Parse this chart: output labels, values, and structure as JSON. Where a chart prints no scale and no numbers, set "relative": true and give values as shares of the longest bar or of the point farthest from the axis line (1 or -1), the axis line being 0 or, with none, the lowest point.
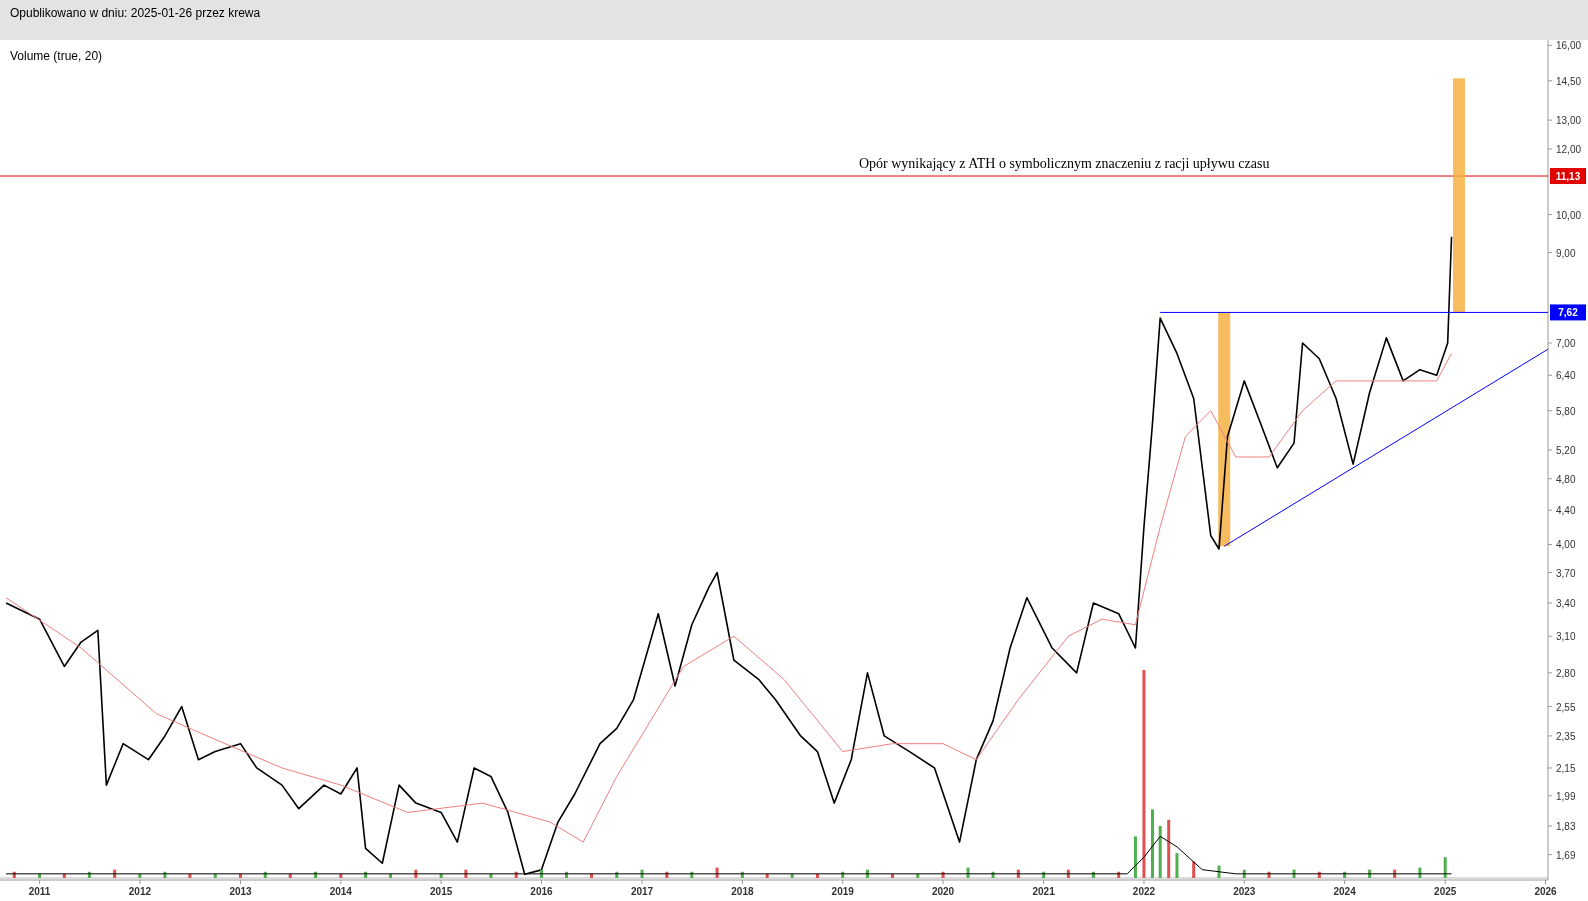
{
  "chart_data": [
    {
      "type": "line",
      "title": "Opublikowano w dniu: 2025-01-26 przez krewa",
      "log": true,
      "xlim": [
        "2010-08-10",
        "2026-01-10"
      ],
      "ylim": [
        1.575,
        16.15
      ],
      "xticks": [
        {
          "value": "2011",
          "label": "2011"
        },
        {
          "value": "2012",
          "label": "2012"
        },
        {
          "value": "2013",
          "label": "2013"
        },
        {
          "value": "2014",
          "label": "2014"
        },
        {
          "value": "2015",
          "label": "2015"
        },
        {
          "value": "2016",
          "label": "2016"
        },
        {
          "value": "2017",
          "label": "2017"
        },
        {
          "value": "2018",
          "label": "2018"
        },
        {
          "value": "2019",
          "label": "2019"
        },
        {
          "value": "2020",
          "label": "2020"
        },
        {
          "value": "2021",
          "label": "2021"
        },
        {
          "value": "2022",
          "label": "2022"
        },
        {
          "value": "2023",
          "label": "2023"
        },
        {
          "value": "2024",
          "label": "2024"
        },
        {
          "value": "2025",
          "label": "2025"
        },
        {
          "value": "2026",
          "label": "2026"
        }
      ],
      "yticks": [
        {
          "value": 1.69,
          "label": "1,69"
        },
        {
          "value": 1.83,
          "label": "1,83"
        },
        {
          "value": 1.99,
          "label": "1,99"
        },
        {
          "value": 2.15,
          "label": "2,15"
        },
        {
          "value": 2.35,
          "label": "2,35"
        },
        {
          "value": 2.55,
          "label": "2,55"
        },
        {
          "value": 2.8,
          "label": "2,80"
        },
        {
          "value": 3.1,
          "label": "3,10"
        },
        {
          "value": 3.4,
          "label": "3,40"
        },
        {
          "value": 3.7,
          "label": "3,70"
        },
        {
          "value": 4,
          "label": "4,00"
        },
        {
          "value": 4.4,
          "label": "4,40"
        },
        {
          "value": 4.8,
          "label": "4,80"
        },
        {
          "value": 5.2,
          "label": "5,20"
        },
        {
          "value": 5.8,
          "label": "5,80"
        },
        {
          "value": 6.4,
          "label": "6,40"
        },
        {
          "value": 7,
          "label": "7,00"
        },
        {
          "value": 9,
          "label": "9,00"
        },
        {
          "value": 10,
          "label": "10,00"
        },
        {
          "value": 12,
          "label": "12,00"
        },
        {
          "value": 13,
          "label": "13,00"
        },
        {
          "value": 14.5,
          "label": "14,50"
        },
        {
          "value": 16,
          "label": "16,00"
        }
      ],
      "ref_lines": [
        {
          "axis": "y",
          "value": 11.13,
          "label": "11,13",
          "color": "#e00000"
        }
      ],
      "annotations": [
        {
          "text": "Opór wynikający z ATH o symbolicznym znaczeniu z racji upływu czasu",
          "x": "2019-03",
          "y": 11.13
        }
      ],
      "series": [
        {
          "type": "line",
          "color": "#000000",
          "x": [
            "2010-09",
            "2011-01",
            "2011-04",
            "2011-06",
            "2011-08",
            "2011-09",
            "2011-11",
            "2012-02",
            "2012-04",
            "2012-06",
            "2012-08",
            "2012-10",
            "2013-01",
            "2013-03",
            "2013-06",
            "2013-08",
            "2013-11",
            "2014-01",
            "2014-03",
            "2014-04",
            "2014-06",
            "2014-08",
            "2014-10",
            "2015-01",
            "2015-03",
            "2015-05",
            "2015-07",
            "2015-09",
            "2015-11",
            "2016-01",
            "2016-03",
            "2016-05",
            "2016-08",
            "2016-10",
            "2016-12",
            "2017-03",
            "2017-05",
            "2017-07",
            "2017-09",
            "2017-10",
            "2017-12",
            "2018-03",
            "2018-05",
            "2018-08",
            "2018-10",
            "2018-12",
            "2019-02",
            "2019-04",
            "2019-06",
            "2019-09",
            "2019-12",
            "2020-03",
            "2020-05",
            "2020-07",
            "2020-09",
            "2020-11",
            "2021-02",
            "2021-05",
            "2021-07",
            "2021-10",
            "2021-12",
            "2022-01",
            "2022-02",
            "2022-03",
            "2022-05",
            "2022-07",
            "2022-09",
            "2022-10",
            "2022-11",
            "2023-01",
            "2023-03",
            "2023-05",
            "2023-07",
            "2023-08",
            "2023-10",
            "2023-12",
            "2024-02",
            "2024-04",
            "2024-06",
            "2024-08",
            "2024-10",
            "2024-12",
            "2025-01-10",
            "2025-01-24"
          ],
          "values": [
            3.4,
            3.25,
            2.85,
            3.05,
            3.15,
            2.05,
            2.3,
            2.2,
            2.35,
            2.55,
            2.2,
            2.25,
            2.3,
            2.15,
            2.05,
            1.92,
            2.05,
            2,
            2.15,
            1.72,
            1.65,
            2.05,
            1.95,
            1.9,
            1.75,
            2.15,
            2.1,
            1.9,
            1.6,
            1.62,
            1.85,
            2,
            2.3,
            2.4,
            2.6,
            3.3,
            2.7,
            3.2,
            3.55,
            3.7,
            2.9,
            2.75,
            2.6,
            2.35,
            2.25,
            1.95,
            2.2,
            2.8,
            2.35,
            2.25,
            2.15,
            1.75,
            2.2,
            2.45,
            3,
            3.45,
            3,
            2.8,
            3.4,
            3.3,
            3,
            4.2,
            5.6,
            7.5,
            6.8,
            6,
            4.1,
            3.95,
            5.4,
            6.3,
            5.6,
            4.95,
            5.3,
            7,
            6.7,
            6,
            5,
            6.1,
            7.1,
            6.3,
            6.5,
            6.4,
            7,
            9.4
          ]
        },
        {
          "type": "line",
          "color": "#f08080",
          "x": [
            "2010-09",
            "2011-06",
            "2012-03",
            "2012-09",
            "2013-06",
            "2014-01",
            "2014-09",
            "2015-06",
            "2016-02",
            "2016-06",
            "2016-10",
            "2017-06",
            "2017-12",
            "2018-06",
            "2019-01",
            "2019-07",
            "2020-01",
            "2020-05",
            "2020-10",
            "2021-04",
            "2021-08",
            "2021-12",
            "2022-03",
            "2022-06",
            "2022-09",
            "2022-12",
            "2023-04",
            "2023-08",
            "2023-12",
            "2024-06",
            "2024-12",
            "2025-01-24"
          ],
          "values": [
            3.45,
            3,
            2.5,
            2.35,
            2.15,
            2.05,
            1.9,
            1.95,
            1.85,
            1.75,
            2.1,
            2.85,
            3.1,
            2.75,
            2.25,
            2.3,
            2.3,
            2.2,
            2.6,
            3.1,
            3.25,
            3.2,
            4.2,
            5.4,
            5.8,
            5.1,
            5.1,
            5.8,
            6.3,
            6.3,
            6.3,
            6.8
          ]
        },
        {
          "type": "line",
          "color": "#0000ff",
          "x": [
            "2022-10-20",
            "2026-01-10"
          ],
          "values": [
            3.98,
            6.88
          ]
        },
        {
          "type": "line",
          "color": "#0000ff",
          "x": [
            "2022-03-01",
            "2026-01-10"
          ],
          "values": [
            7.62,
            7.62
          ],
          "value_labels": [
            null,
            "7,62"
          ]
        },
        {
          "type": "bar",
          "color": "#f5b041",
          "x": [
            "2022-10-20",
            "2025-02-20"
          ],
          "base": [
            3.98,
            7.62
          ],
          "values": [
            3.64,
            6.98
          ]
        }
      ]
    },
    {
      "type": "bar",
      "title": "Volume (true, 20)",
      "relative": true,
      "xlim": [
        "2010-08-10",
        "2026-01-10"
      ],
      "series": [
        {
          "type": "bar",
          "x": [
            "2010-10",
            "2011-01",
            "2011-04",
            "2011-07",
            "2011-10",
            "2012-01",
            "2012-04",
            "2012-07",
            "2012-10",
            "2013-01",
            "2013-04",
            "2013-07",
            "2013-10",
            "2014-01",
            "2014-04",
            "2014-07",
            "2014-10",
            "2015-01",
            "2015-04",
            "2015-07",
            "2015-10",
            "2016-01",
            "2016-04",
            "2016-07",
            "2016-10",
            "2017-01",
            "2017-04",
            "2017-07",
            "2017-10",
            "2018-01",
            "2018-04",
            "2018-07",
            "2018-10",
            "2019-01",
            "2019-04",
            "2019-07",
            "2019-10",
            "2020-01",
            "2020-04",
            "2020-07",
            "2020-10",
            "2021-01",
            "2021-04",
            "2021-07",
            "2021-10",
            "2021-12",
            "2022-01",
            "2022-02",
            "2022-03",
            "2022-04",
            "2022-05",
            "2022-07",
            "2022-10",
            "2023-01",
            "2023-04",
            "2023-07",
            "2023-10",
            "2024-01",
            "2024-04",
            "2024-07",
            "2024-10",
            "2025-01"
          ],
          "values": [
            0.03,
            0.02,
            0.02,
            0.03,
            0.04,
            0.02,
            0.03,
            0.02,
            0.02,
            0.02,
            0.03,
            0.02,
            0.03,
            0.02,
            0.03,
            0.02,
            0.04,
            0.02,
            0.04,
            0.02,
            0.03,
            0.04,
            0.03,
            0.02,
            0.03,
            0.04,
            0.03,
            0.03,
            0.05,
            0.03,
            0.02,
            0.02,
            0.02,
            0.03,
            0.04,
            0.02,
            0.02,
            0.03,
            0.05,
            0.03,
            0.04,
            0.03,
            0.04,
            0.03,
            0.03,
            0.2,
            1,
            0.33,
            0.25,
            0.28,
            0.12,
            0.08,
            0.06,
            0.04,
            0.03,
            0.04,
            0.03,
            0.03,
            0.04,
            0.04,
            0.05,
            0.1
          ],
          "colors": [
            "#e05050",
            "#50b050",
            "#e05050",
            "#50b050",
            "#e05050",
            "#50b050",
            "#50b050",
            "#e05050",
            "#50b050",
            "#e05050",
            "#50b050",
            "#e05050",
            "#50b050",
            "#e05050",
            "#50b050",
            "#50b050",
            "#e05050",
            "#50b050",
            "#e05050",
            "#50b050",
            "#e05050",
            "#50b050",
            "#50b050",
            "#e05050",
            "#50b050",
            "#50b050",
            "#e05050",
            "#50b050",
            "#e05050",
            "#50b050",
            "#e05050",
            "#50b050",
            "#e05050",
            "#50b050",
            "#50b050",
            "#e05050",
            "#50b050",
            "#e05050",
            "#50b050",
            "#50b050",
            "#e05050",
            "#50b050",
            "#e05050",
            "#50b050",
            "#e05050",
            "#50b050",
            "#e05050",
            "#50b050",
            "#50b050",
            "#e05050",
            "#50b050",
            "#e05050",
            "#50b050",
            "#50b050",
            "#e05050",
            "#50b050",
            "#e05050",
            "#50b050",
            "#50b050",
            "#e05050",
            "#50b050",
            "#50b050"
          ]
        },
        {
          "type": "line",
          "color": "#000000",
          "x": [
            "2010-09",
            "2021-11",
            "2022-01",
            "2022-03",
            "2022-05",
            "2022-08",
            "2022-12",
            "2025-01-24"
          ],
          "values": [
            0.02,
            0.02,
            0.1,
            0.2,
            0.15,
            0.04,
            0.02,
            0.02
          ]
        }
      ]
    }
  ]
}
